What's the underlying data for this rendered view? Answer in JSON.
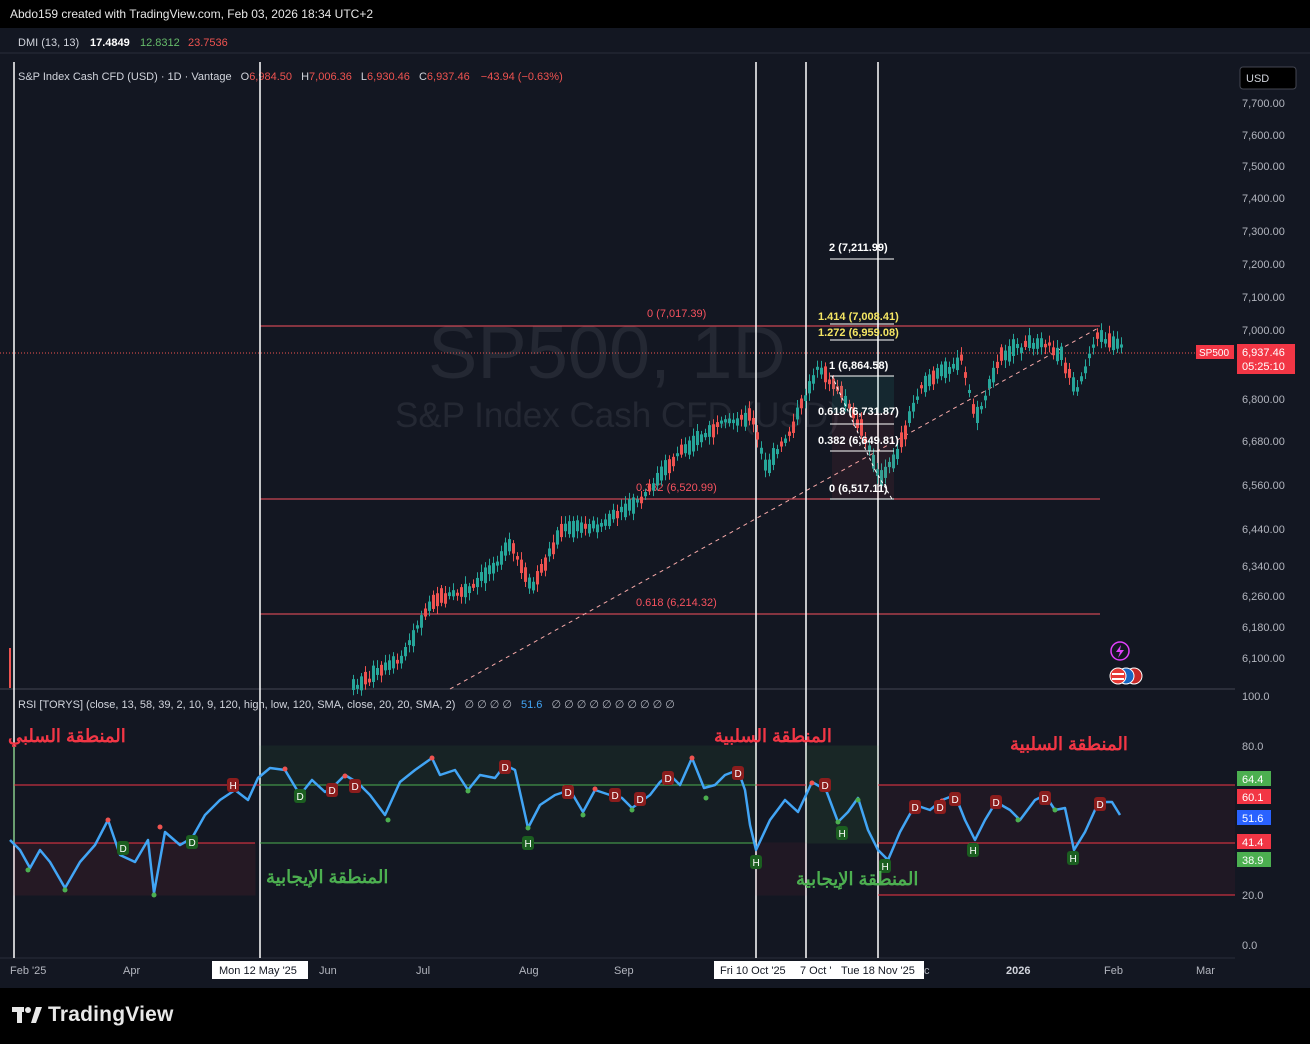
{
  "header": {
    "created_by": "Abdo159 created with TradingView.com, Feb 03, 2026 18:34 UTC+2"
  },
  "dmi": {
    "label": "DMI (13, 13)",
    "v1": "17.4849",
    "v2": "12.8312",
    "v3": "23.7536"
  },
  "symbol": {
    "name": "S&P Index Cash CFD (USD) · 1D · Vantage",
    "o_label": "O",
    "o": "6,984.50",
    "h_label": "H",
    "h": "7,006.36",
    "l_label": "L",
    "l": "6,930.46",
    "c_label": "C",
    "c": "6,937.46",
    "change": "−43.94 (−0.63%)"
  },
  "watermark": {
    "line1": "SP500, 1D",
    "line2": "S&P Index Cash CFD (USD)"
  },
  "currency_button": "USD",
  "price_axis": [
    "7,700.00",
    "7,600.00",
    "7,500.00",
    "7,400.00",
    "7,300.00",
    "7,200.00",
    "7,100.00",
    "7,000.00",
    "6,800.00",
    "6,680.00",
    "6,560.00",
    "6,440.00",
    "6,340.00",
    "6,260.00",
    "6,180.00",
    "6,100.00"
  ],
  "price_tag": {
    "symbol": "SP500",
    "price": "6,937.46",
    "countdown": "05:25:10"
  },
  "fib_main": {
    "l0": "0 (7,017.39)",
    "l382": "0.382 (6,520.99)",
    "l618": "0.618 (6,214.32)"
  },
  "fib_ext": {
    "l2": "2 (7,211.99)",
    "l1414": "1.414 (7,008.41)",
    "l1272": "1.272 (6,959.08)",
    "l1": "1 (6,864.58)",
    "l618": "0.618 (6,731.87)",
    "l382": "0.382 (6,649.81)",
    "l0": "0 (6,517.11)"
  },
  "rsi": {
    "label": "RSI [TORYS] (close, 13, 58, 39, 2, 10, 9, 120, high, low, 120, SMA, close, 20, 20, SMA, 2)",
    "zeros": "∅ ∅ ∅ ∅",
    "value": "51.6",
    "zeros2": "∅ ∅ ∅ ∅ ∅ ∅ ∅ ∅ ∅ ∅",
    "axis": [
      "100.0",
      "80.0",
      "20.0",
      "0.0"
    ],
    "tags": {
      "t644": "64.4",
      "t601": "60.1",
      "t516": "51.6",
      "t414": "41.4",
      "t389": "38.9"
    }
  },
  "zones": {
    "negative": "المنطقة السلبية",
    "negative_cut": "المنطقة السلبي",
    "positive": "المنطقة الإيجابية"
  },
  "time_axis": {
    "feb25": "Feb '25",
    "apr": "Apr",
    "may12": "Mon 12 May '25",
    "jun": "Jun",
    "jul": "Jul",
    "aug": "Aug",
    "sep": "Sep",
    "oct10": "Fri 10 Oct '25",
    "oct27": "7 Oct '",
    "nov18": "Tue 18 Nov '25",
    "dec": "c",
    "y2026": "2026",
    "feb": "Feb",
    "mar": "Mar"
  },
  "footer": {
    "brand": "TradingView"
  },
  "colors": {
    "bg": "#131722",
    "up": "#26a69a",
    "down": "#ef5350",
    "rsi": "#2962ff",
    "zone_red": "#f23645",
    "zone_green": "#4caf50",
    "fib": "#f7525f"
  }
}
